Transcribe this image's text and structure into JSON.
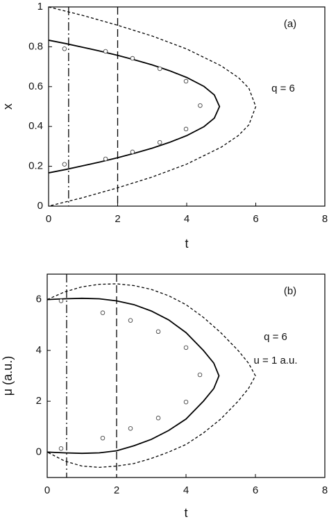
{
  "chart_data": [
    {
      "type": "line",
      "xlabel": "t",
      "ylabel": "x",
      "xlim": [
        0,
        8
      ],
      "xticks": [
        0,
        2,
        4,
        6,
        8
      ],
      "ylim": [
        0,
        1
      ],
      "yticks": [
        0,
        0.2,
        0.4,
        0.6,
        0.8,
        1
      ],
      "annotations": [
        "(a)",
        "q = 6"
      ],
      "vlines": [
        {
          "x": 0.58,
          "style": "dashdot"
        },
        {
          "x": 2,
          "style": "longdash"
        }
      ],
      "series": [
        {
          "style": "solid",
          "color": "#000000",
          "x": [
            0,
            0.5,
            1,
            1.5,
            2,
            2.5,
            3,
            3.5,
            4,
            4.5,
            4.8,
            4.95,
            4.8,
            4.5,
            4,
            3.5,
            3,
            2.5,
            2,
            1.5,
            1,
            0.5,
            0
          ],
          "values": [
            0.833,
            0.816,
            0.797,
            0.778,
            0.757,
            0.734,
            0.709,
            0.68,
            0.646,
            0.601,
            0.558,
            0.5,
            0.442,
            0.399,
            0.354,
            0.32,
            0.291,
            0.266,
            0.243,
            0.222,
            0.203,
            0.184,
            0.167
          ]
        },
        {
          "style": "dashed",
          "color": "#000000",
          "x": [
            0,
            1,
            2,
            3,
            4,
            5,
            5.5,
            5.8,
            6,
            5.8,
            5.5,
            5,
            4,
            3,
            2,
            1,
            0
          ],
          "values": [
            1,
            0.957,
            0.908,
            0.854,
            0.789,
            0.704,
            0.645,
            0.592,
            0.5,
            0.408,
            0.355,
            0.296,
            0.211,
            0.146,
            0.092,
            0.043,
            0
          ]
        },
        {
          "style": "markers",
          "color": "#444444",
          "x": [
            0.46,
            1.65,
            2.43,
            3.22,
            3.98,
            4.39,
            0.46,
            1.65,
            2.43,
            3.22,
            3.98
          ],
          "values": [
            0.79,
            0.777,
            0.742,
            0.69,
            0.627,
            0.505,
            0.21,
            0.237,
            0.272,
            0.32,
            0.387
          ]
        }
      ]
    },
    {
      "type": "line",
      "xlabel": "t",
      "ylabel": "μ (a.u.)",
      "xlim": [
        0,
        8
      ],
      "xticks": [
        0,
        2,
        4,
        6,
        8
      ],
      "ylim": [
        -1,
        7
      ],
      "yticks": [
        0,
        2,
        4,
        6
      ],
      "annotations": [
        "(b)",
        "q = 6",
        "u = 1 a.u."
      ],
      "vlines": [
        {
          "x": 0.56,
          "style": "dashdot"
        },
        {
          "x": 2,
          "style": "longdash"
        }
      ],
      "series": [
        {
          "style": "solid",
          "color": "#000000",
          "x": [
            0,
            0.5,
            1,
            1.5,
            2,
            2.5,
            3,
            3.5,
            4,
            4.5,
            4.8,
            4.95,
            4.8,
            4.5,
            4,
            3.5,
            3,
            2.5,
            2,
            1.5,
            1,
            0.5,
            0
          ],
          "values": [
            6,
            6.03,
            6.05,
            6.03,
            5.95,
            5.8,
            5.55,
            5.2,
            4.7,
            4,
            3.5,
            3,
            2.5,
            2,
            1.3,
            0.85,
            0.5,
            0.25,
            0.05,
            -0.03,
            -0.05,
            -0.03,
            0
          ]
        },
        {
          "style": "dashed",
          "color": "#000000",
          "x": [
            0,
            0.5,
            1,
            1.5,
            2,
            2.5,
            3,
            3.5,
            4,
            4.5,
            5,
            5.5,
            5.8,
            6,
            5.8,
            5.5,
            5,
            4.5,
            4,
            3.5,
            3,
            2.5,
            2,
            1.5,
            1,
            0.5,
            0
          ],
          "values": [
            6,
            6.3,
            6.5,
            6.6,
            6.62,
            6.55,
            6.4,
            6.15,
            5.8,
            5.3,
            4.7,
            4,
            3.5,
            3,
            2.5,
            2,
            1.3,
            0.75,
            0.3,
            0,
            -0.25,
            -0.45,
            -0.55,
            -0.6,
            -0.55,
            -0.35,
            0
          ]
        },
        {
          "style": "markers",
          "color": "#444444",
          "x": [
            0.4,
            1.6,
            2.4,
            3.2,
            4,
            4.4,
            4,
            3.2,
            2.4,
            1.6,
            0.4
          ],
          "values": [
            5.95,
            5.48,
            5.18,
            4.74,
            4.11,
            3.04,
            1.97,
            1.34,
            0.93,
            0.55,
            0.14
          ]
        }
      ]
    }
  ]
}
